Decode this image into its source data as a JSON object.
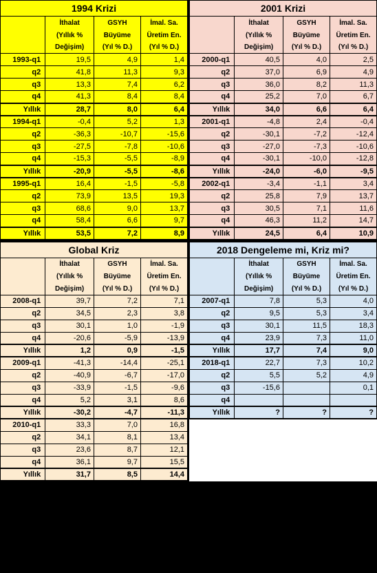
{
  "headers": {
    "col1_l1": "İthalat",
    "col1_l2": "(Yıllık %",
    "col1_l3": "Değişim)",
    "col2_l1": "GSYH",
    "col2_l2": "Büyüme",
    "col2_l3": "(Yıl % D.)",
    "col3_l1": "İmal. Sa.",
    "col3_l2": "Üretim En.",
    "col3_l3": "(Yıl % D.)",
    "yearly": "Yıllık"
  },
  "panels": [
    {
      "title": "1994 Krizi",
      "bg": "#ffff00",
      "blocks": [
        {
          "labels": [
            "1993-q1",
            "q2",
            "q3",
            "q4"
          ],
          "rows": [
            [
              "19,5",
              "4,9",
              "1,4"
            ],
            [
              "41,8",
              "11,3",
              "9,3"
            ],
            [
              "13,3",
              "7,4",
              "6,2"
            ],
            [
              "41,3",
              "8,4",
              "8,4"
            ]
          ],
          "yearly": [
            "28,7",
            "8,0",
            "6,4"
          ]
        },
        {
          "labels": [
            "1994-q1",
            "q2",
            "q3",
            "q4"
          ],
          "rows": [
            [
              "-0,4",
              "5,2",
              "1,3"
            ],
            [
              "-36,3",
              "-10,7",
              "-15,6"
            ],
            [
              "-27,5",
              "-7,8",
              "-10,6"
            ],
            [
              "-15,3",
              "-5,5",
              "-8,9"
            ]
          ],
          "yearly": [
            "-20,9",
            "-5,5",
            "-8,6"
          ]
        },
        {
          "labels": [
            "1995-q1",
            "q2",
            "q3",
            "q4"
          ],
          "rows": [
            [
              "16,4",
              "-1,5",
              "-5,8"
            ],
            [
              "73,9",
              "13,5",
              "19,3"
            ],
            [
              "68,6",
              "9,0",
              "13,7"
            ],
            [
              "58,4",
              "6,6",
              "9,7"
            ]
          ],
          "yearly": [
            "53,5",
            "7,2",
            "8,9"
          ]
        }
      ]
    },
    {
      "title": "2001 Krizi",
      "bg": "#f8d7cd",
      "blocks": [
        {
          "labels": [
            "2000-q1",
            "q2",
            "q3",
            "q4"
          ],
          "rows": [
            [
              "40,5",
              "4,0",
              "2,5"
            ],
            [
              "37,0",
              "6,9",
              "4,9"
            ],
            [
              "36,0",
              "8,2",
              "11,3"
            ],
            [
              "25,2",
              "7,0",
              "6,7"
            ]
          ],
          "yearly": [
            "34,0",
            "6,6",
            "6,4"
          ]
        },
        {
          "labels": [
            "2001-q1",
            "q2",
            "q3",
            "q4"
          ],
          "rows": [
            [
              "-4,8",
              "2,4",
              "-0,4"
            ],
            [
              "-30,1",
              "-7,2",
              "-12,4"
            ],
            [
              "-27,0",
              "-7,3",
              "-10,6"
            ],
            [
              "-30,1",
              "-10,0",
              "-12,8"
            ]
          ],
          "yearly": [
            "-24,0",
            "-6,0",
            "-9,5"
          ]
        },
        {
          "labels": [
            "2002-q1",
            "q2",
            "q3",
            "q4"
          ],
          "rows": [
            [
              "-3,4",
              "-1,1",
              "3,4"
            ],
            [
              "25,8",
              "7,9",
              "13,7"
            ],
            [
              "30,5",
              "7,1",
              "11,6"
            ],
            [
              "46,3",
              "11,2",
              "14,7"
            ]
          ],
          "yearly": [
            "24,5",
            "6,4",
            "10,9"
          ]
        }
      ]
    },
    {
      "title": "Global Kriz",
      "bg": "#fdebd0",
      "blocks": [
        {
          "labels": [
            "2008-q1",
            "q2",
            "q3",
            "q4"
          ],
          "rows": [
            [
              "39,7",
              "7,2",
              "7,1"
            ],
            [
              "34,5",
              "2,3",
              "3,8"
            ],
            [
              "30,1",
              "1,0",
              "-1,9"
            ],
            [
              "-20,6",
              "-5,9",
              "-13,9"
            ]
          ],
          "yearly": [
            "1,2",
            "0,9",
            "-1,5"
          ]
        },
        {
          "labels": [
            "2009-q1",
            "q2",
            "q3",
            "q4"
          ],
          "rows": [
            [
              "-41,3",
              "-14,4",
              "-25,1"
            ],
            [
              "-40,9",
              "-6,7",
              "-17,0"
            ],
            [
              "-33,9",
              "-1,5",
              "-9,6"
            ],
            [
              "5,2",
              "3,1",
              "8,6"
            ]
          ],
          "yearly": [
            "-30,2",
            "-4,7",
            "-11,3"
          ]
        },
        {
          "labels": [
            "2010-q1",
            "q2",
            "q3",
            "q4"
          ],
          "rows": [
            [
              "33,3",
              "7,0",
              "16,8"
            ],
            [
              "34,1",
              "8,1",
              "13,4"
            ],
            [
              "23,6",
              "8,7",
              "12,1"
            ],
            [
              "36,1",
              "9,7",
              "15,5"
            ]
          ],
          "yearly": [
            "31,7",
            "8,5",
            "14,4"
          ]
        }
      ]
    },
    {
      "title": "2018 Dengeleme mi, Kriz mi?",
      "bg": "#d6e5f3",
      "blocks": [
        {
          "labels": [
            "2007-q1",
            "q2",
            "q3",
            "q4"
          ],
          "rows": [
            [
              "7,8",
              "5,3",
              "4,0"
            ],
            [
              "9,5",
              "5,3",
              "3,4"
            ],
            [
              "30,1",
              "11,5",
              "18,3"
            ],
            [
              "23,9",
              "7,3",
              "11,0"
            ]
          ],
          "yearly": [
            "17,7",
            "7,4",
            "9,0"
          ]
        },
        {
          "labels": [
            "2018-q1",
            "q2",
            "q3",
            "q4"
          ],
          "rows": [
            [
              "22,7",
              "7,3",
              "10,2"
            ],
            [
              "5,5",
              "5,2",
              "4,9"
            ],
            [
              "-15,6",
              "",
              "0,1"
            ],
            [
              "",
              "",
              ""
            ]
          ],
          "yearly": [
            "?",
            "?",
            "?"
          ]
        }
      ]
    }
  ]
}
